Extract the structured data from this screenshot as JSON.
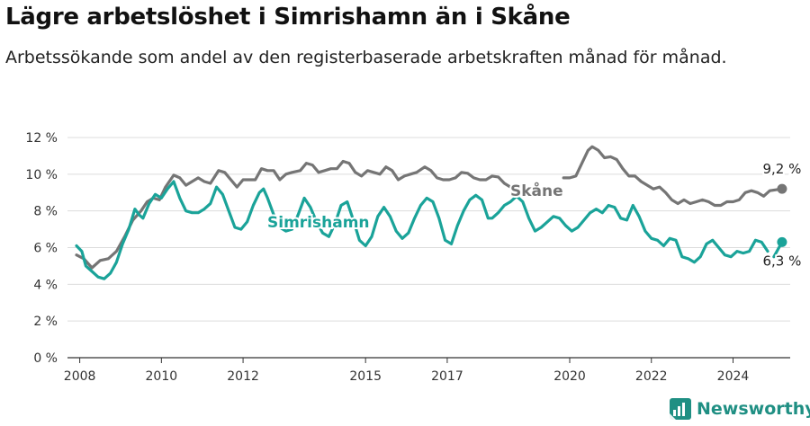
{
  "title": "Lägre arbetslöshet i Simrishamn än i Skåne",
  "subtitle": "Arbetssökande som andel av den registerbaserade arbetskraften månad för månad.",
  "brand": "Newsworthy",
  "colors": {
    "skane": "#757575",
    "simrishamn": "#1aa399",
    "grid": "#dcdcdc",
    "brand": "#1f8f83"
  },
  "chart_data": {
    "type": "line",
    "ylabel": "",
    "xlabel": "",
    "ylim": [
      0,
      12
    ],
    "xlim": [
      2007.7,
      2025.4
    ],
    "yticks": [
      0,
      2,
      4,
      6,
      8,
      10,
      12
    ],
    "ytick_labels": [
      "0 %",
      "2 %",
      "4 %",
      "6 %",
      "8 %",
      "10 %",
      "12 %"
    ],
    "xticks": [
      2008,
      2010,
      2012,
      2015,
      2017,
      2020,
      2022,
      2024
    ],
    "xtick_labels": [
      "2008",
      "2010",
      "2012",
      "2015",
      "2017",
      "2020",
      "2022",
      "2024"
    ],
    "grid": true,
    "series": [
      {
        "name": "Skåne",
        "color": "#757575",
        "end_label": "9,2 %",
        "points": [
          [
            2007.92,
            5.6
          ],
          [
            2008.1,
            5.4
          ],
          [
            2008.3,
            4.9
          ],
          [
            2008.5,
            5.3
          ],
          [
            2008.7,
            5.4
          ],
          [
            2008.9,
            5.8
          ],
          [
            2009.1,
            6.6
          ],
          [
            2009.3,
            7.5
          ],
          [
            2009.5,
            8.0
          ],
          [
            2009.65,
            8.5
          ],
          [
            2009.8,
            8.7
          ],
          [
            2009.95,
            8.6
          ],
          [
            2010.1,
            9.3
          ],
          [
            2010.3,
            9.95
          ],
          [
            2010.45,
            9.8
          ],
          [
            2010.6,
            9.4
          ],
          [
            2010.75,
            9.6
          ],
          [
            2010.9,
            9.8
          ],
          [
            2011.05,
            9.6
          ],
          [
            2011.2,
            9.5
          ],
          [
            2011.4,
            10.2
          ],
          [
            2011.55,
            10.1
          ],
          [
            2011.7,
            9.7
          ],
          [
            2011.85,
            9.3
          ],
          [
            2012.0,
            9.7
          ],
          [
            2012.15,
            9.7
          ],
          [
            2012.3,
            9.7
          ],
          [
            2012.45,
            10.3
          ],
          [
            2012.6,
            10.2
          ],
          [
            2012.75,
            10.2
          ],
          [
            2012.9,
            9.7
          ],
          [
            2013.05,
            10.0
          ],
          [
            2013.2,
            10.1
          ],
          [
            2013.4,
            10.2
          ],
          [
            2013.55,
            10.6
          ],
          [
            2013.7,
            10.5
          ],
          [
            2013.85,
            10.1
          ],
          [
            2014.0,
            10.2
          ],
          [
            2014.15,
            10.3
          ],
          [
            2014.3,
            10.3
          ],
          [
            2014.45,
            10.7
          ],
          [
            2014.6,
            10.6
          ],
          [
            2014.75,
            10.1
          ],
          [
            2014.9,
            9.9
          ],
          [
            2015.05,
            10.2
          ],
          [
            2015.2,
            10.1
          ],
          [
            2015.35,
            10.0
          ],
          [
            2015.5,
            10.4
          ],
          [
            2015.65,
            10.2
          ],
          [
            2015.8,
            9.7
          ],
          [
            2015.95,
            9.9
          ],
          [
            2016.1,
            10.0
          ],
          [
            2016.25,
            10.1
          ],
          [
            2016.45,
            10.4
          ],
          [
            2016.6,
            10.2
          ],
          [
            2016.75,
            9.8
          ],
          [
            2016.9,
            9.7
          ],
          [
            2017.05,
            9.7
          ],
          [
            2017.2,
            9.8
          ],
          [
            2017.35,
            10.1
          ],
          [
            2017.5,
            10.05
          ],
          [
            2017.65,
            9.8
          ],
          [
            2017.8,
            9.7
          ],
          [
            2017.95,
            9.7
          ],
          [
            2018.1,
            9.9
          ],
          [
            2018.25,
            9.85
          ],
          [
            2018.4,
            9.5
          ],
          [
            2018.55,
            9.3
          ],
          null,
          [
            2019.85,
            9.8
          ],
          [
            2020.0,
            9.8
          ],
          [
            2020.15,
            9.9
          ],
          [
            2020.3,
            10.6
          ],
          [
            2020.45,
            11.3
          ],
          [
            2020.55,
            11.5
          ],
          [
            2020.7,
            11.3
          ],
          [
            2020.85,
            10.9
          ],
          [
            2021.0,
            10.95
          ],
          [
            2021.15,
            10.8
          ],
          [
            2021.3,
            10.3
          ],
          [
            2021.45,
            9.9
          ],
          [
            2021.6,
            9.9
          ],
          [
            2021.75,
            9.6
          ],
          [
            2021.9,
            9.4
          ],
          [
            2022.05,
            9.2
          ],
          [
            2022.2,
            9.3
          ],
          [
            2022.35,
            9.0
          ],
          [
            2022.5,
            8.6
          ],
          [
            2022.65,
            8.4
          ],
          [
            2022.8,
            8.6
          ],
          [
            2022.95,
            8.4
          ],
          [
            2023.1,
            8.5
          ],
          [
            2023.25,
            8.6
          ],
          [
            2023.4,
            8.5
          ],
          [
            2023.55,
            8.3
          ],
          [
            2023.7,
            8.3
          ],
          [
            2023.85,
            8.5
          ],
          [
            2024.0,
            8.5
          ],
          [
            2024.15,
            8.6
          ],
          [
            2024.3,
            9.0
          ],
          [
            2024.45,
            9.1
          ],
          [
            2024.6,
            9.0
          ],
          [
            2024.75,
            8.8
          ],
          [
            2024.9,
            9.1
          ],
          [
            2025.05,
            9.15
          ],
          [
            2025.2,
            9.2
          ]
        ]
      },
      {
        "name": "Simrishamn",
        "color": "#1aa399",
        "end_label": "6,3 %",
        "points": [
          [
            2007.92,
            6.1
          ],
          [
            2008.05,
            5.8
          ],
          [
            2008.15,
            5.0
          ],
          [
            2008.3,
            4.7
          ],
          [
            2008.45,
            4.4
          ],
          [
            2008.6,
            4.3
          ],
          [
            2008.75,
            4.6
          ],
          [
            2008.9,
            5.2
          ],
          [
            2009.05,
            6.2
          ],
          [
            2009.2,
            7.0
          ],
          [
            2009.35,
            8.1
          ],
          [
            2009.45,
            7.8
          ],
          [
            2009.55,
            7.6
          ],
          [
            2009.7,
            8.4
          ],
          [
            2009.85,
            8.9
          ],
          [
            2010.0,
            8.7
          ],
          [
            2010.15,
            9.2
          ],
          [
            2010.3,
            9.6
          ],
          [
            2010.45,
            8.7
          ],
          [
            2010.6,
            8.0
          ],
          [
            2010.75,
            7.9
          ],
          [
            2010.9,
            7.9
          ],
          [
            2011.05,
            8.1
          ],
          [
            2011.2,
            8.4
          ],
          [
            2011.35,
            9.3
          ],
          [
            2011.5,
            8.9
          ],
          [
            2011.65,
            8.0
          ],
          [
            2011.8,
            7.1
          ],
          [
            2011.95,
            7.0
          ],
          [
            2012.1,
            7.4
          ],
          [
            2012.25,
            8.3
          ],
          [
            2012.4,
            9.0
          ],
          [
            2012.5,
            9.2
          ],
          [
            2012.6,
            8.7
          ],
          [
            2012.75,
            7.8
          ],
          [
            2012.9,
            7.1
          ],
          [
            2013.05,
            6.9
          ],
          [
            2013.2,
            7.0
          ],
          [
            2013.35,
            7.8
          ],
          [
            2013.5,
            8.7
          ],
          [
            2013.65,
            8.2
          ],
          [
            2013.8,
            7.4
          ],
          [
            2013.95,
            6.8
          ],
          [
            2014.1,
            6.6
          ],
          [
            2014.25,
            7.3
          ],
          [
            2014.4,
            8.3
          ],
          [
            2014.55,
            8.5
          ],
          [
            2014.7,
            7.5
          ],
          [
            2014.85,
            6.4
          ],
          [
            2015.0,
            6.1
          ],
          [
            2015.15,
            6.6
          ],
          [
            2015.3,
            7.7
          ],
          [
            2015.45,
            8.2
          ],
          [
            2015.6,
            7.7
          ],
          [
            2015.75,
            6.9
          ],
          [
            2015.9,
            6.5
          ],
          [
            2016.05,
            6.8
          ],
          [
            2016.2,
            7.6
          ],
          [
            2016.35,
            8.3
          ],
          [
            2016.5,
            8.7
          ],
          [
            2016.65,
            8.5
          ],
          [
            2016.8,
            7.6
          ],
          [
            2016.95,
            6.4
          ],
          [
            2017.1,
            6.2
          ],
          [
            2017.25,
            7.2
          ],
          [
            2017.4,
            8.0
          ],
          [
            2017.55,
            8.6
          ],
          [
            2017.7,
            8.85
          ],
          [
            2017.85,
            8.6
          ],
          [
            2018.0,
            7.6
          ],
          [
            2018.1,
            7.6
          ],
          [
            2018.25,
            7.9
          ],
          [
            2018.4,
            8.3
          ],
          [
            2018.55,
            8.5
          ],
          [
            2018.7,
            8.8
          ],
          [
            2018.85,
            8.5
          ],
          [
            2019.0,
            7.6
          ],
          [
            2019.15,
            6.9
          ],
          [
            2019.3,
            7.1
          ],
          [
            2019.45,
            7.4
          ],
          [
            2019.6,
            7.7
          ],
          [
            2019.75,
            7.6
          ],
          [
            2019.9,
            7.2
          ],
          [
            2020.05,
            6.9
          ],
          [
            2020.2,
            7.1
          ],
          [
            2020.35,
            7.5
          ],
          [
            2020.5,
            7.9
          ],
          [
            2020.65,
            8.1
          ],
          [
            2020.8,
            7.9
          ],
          [
            2020.95,
            8.3
          ],
          [
            2021.1,
            8.2
          ],
          [
            2021.25,
            7.6
          ],
          [
            2021.4,
            7.5
          ],
          [
            2021.55,
            8.3
          ],
          [
            2021.7,
            7.7
          ],
          [
            2021.85,
            6.9
          ],
          [
            2022.0,
            6.5
          ],
          [
            2022.15,
            6.4
          ],
          [
            2022.3,
            6.1
          ],
          [
            2022.45,
            6.5
          ],
          [
            2022.6,
            6.4
          ],
          [
            2022.75,
            5.5
          ],
          [
            2022.9,
            5.4
          ],
          [
            2023.05,
            5.2
          ],
          [
            2023.2,
            5.5
          ],
          [
            2023.35,
            6.2
          ],
          [
            2023.5,
            6.4
          ],
          [
            2023.65,
            6.0
          ],
          [
            2023.8,
            5.6
          ],
          [
            2023.95,
            5.5
          ],
          [
            2024.1,
            5.8
          ],
          [
            2024.25,
            5.7
          ],
          [
            2024.4,
            5.8
          ],
          [
            2024.55,
            6.4
          ],
          [
            2024.7,
            6.3
          ],
          [
            2024.85,
            5.8
          ],
          null,
          [
            2025.0,
            5.5
          ],
          [
            2025.1,
            5.9
          ],
          [
            2025.2,
            6.3
          ]
        ]
      }
    ]
  }
}
